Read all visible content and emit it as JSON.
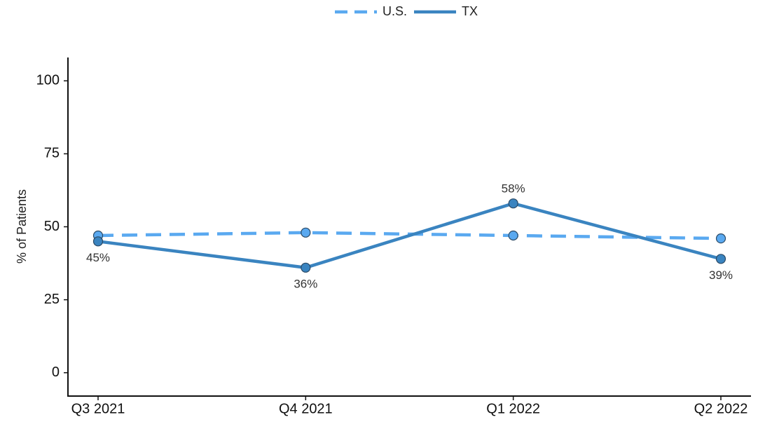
{
  "chart_data": {
    "type": "line",
    "y_label": "% of Patients",
    "categories": [
      "Q3 2021",
      "Q4 2021",
      "Q1 2022",
      "Q2 2022"
    ],
    "series": [
      {
        "name": "U.S.",
        "color": "#5aa9f0",
        "dash": true,
        "values": [
          47,
          48,
          47,
          46
        ]
      },
      {
        "name": "TX",
        "color": "#3a84c0",
        "dash": false,
        "values": [
          45,
          36,
          58,
          39
        ],
        "value_labels": [
          "45%",
          "36%",
          "58%",
          "39%"
        ]
      }
    ],
    "ylim": [
      -8,
      108
    ],
    "yticks": [
      0,
      25,
      50,
      75,
      100
    ],
    "grid": false,
    "legend": "top"
  }
}
